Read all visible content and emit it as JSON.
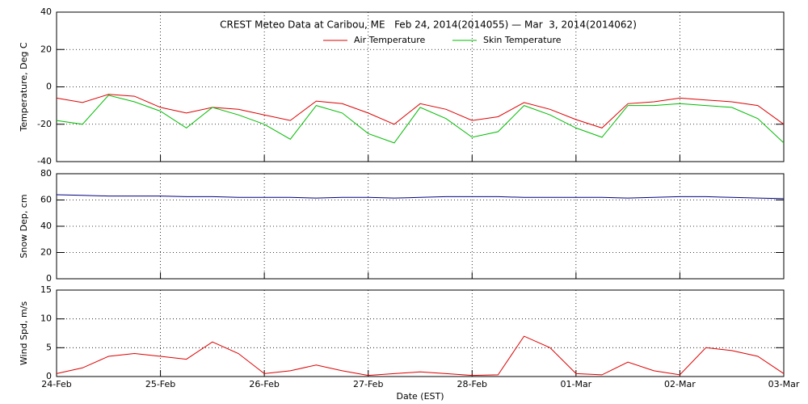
{
  "chart_data": [
    {
      "type": "line",
      "title": "CREST Meteo Data at Caribou, ME   Feb 24, 2014(2014055) — Mar  3, 2014(2014062)",
      "ylabel": "Temperature, Deg C",
      "x": [
        0,
        0.25,
        0.5,
        0.75,
        1,
        1.25,
        1.5,
        1.75,
        2,
        2.25,
        2.5,
        2.75,
        3,
        3.25,
        3.5,
        3.75,
        4,
        4.25,
        4.5,
        4.75,
        5,
        5.25,
        5.5,
        5.75,
        6,
        6.25,
        6.5,
        6.75,
        7
      ],
      "series": [
        {
          "name": "Air Temperature",
          "color": "#dd0000",
          "values": [
            -6,
            -8.4,
            -4,
            -5,
            -11,
            -14,
            -11,
            -12,
            -15,
            -18,
            -7.6,
            -9,
            -14,
            -20,
            -9,
            -12,
            -18,
            -16,
            -8.4,
            -12,
            -17.5,
            -22,
            -9,
            -8,
            -6,
            -7,
            -8,
            -10,
            -20
          ]
        },
        {
          "name": "Skin Temperature",
          "color": "#00bb00",
          "values": [
            -18,
            -20,
            -4.5,
            -8,
            -13,
            -22,
            -11,
            -15,
            -20,
            -28,
            -10,
            -14,
            -25,
            -30,
            -11,
            -17,
            -27,
            -24,
            -10,
            -15,
            -22,
            -27,
            -10,
            -10,
            -9,
            -10,
            -11,
            -17,
            -30
          ]
        }
      ],
      "xlim": [
        0,
        7
      ],
      "xticks": [
        0,
        1,
        2,
        3,
        4,
        5,
        6,
        7
      ],
      "ylim": [
        -40,
        40
      ],
      "yticks": [
        -40,
        -20,
        0,
        20,
        40
      ],
      "grid": true
    },
    {
      "type": "line",
      "ylabel": "Snow Dep, cm",
      "x": [
        0,
        0.25,
        0.5,
        0.75,
        1,
        1.25,
        1.5,
        1.75,
        2,
        2.25,
        2.5,
        2.75,
        3,
        3.25,
        3.5,
        3.75,
        4,
        4.25,
        4.5,
        4.75,
        5,
        5.25,
        5.5,
        5.75,
        6,
        6.25,
        6.5,
        6.75,
        7
      ],
      "series": [
        {
          "color": "#000080",
          "values": [
            64,
            63.5,
            63,
            63,
            63,
            62.5,
            62.5,
            62,
            62,
            62,
            61.5,
            62,
            62,
            61.5,
            62,
            62.5,
            62.5,
            62.5,
            62,
            62,
            62,
            62,
            61.5,
            62,
            62.5,
            62.5,
            62,
            61.5,
            61
          ]
        }
      ],
      "xlim": [
        0,
        7
      ],
      "xticks": [
        0,
        1,
        2,
        3,
        4,
        5,
        6,
        7
      ],
      "ylim": [
        0,
        80
      ],
      "yticks": [
        0,
        20,
        40,
        60,
        80
      ],
      "grid": true
    },
    {
      "type": "line",
      "ylabel": "Wind Spd, m/s",
      "xlabel": "Date (EST)",
      "x": [
        0,
        0.25,
        0.5,
        0.75,
        1,
        1.25,
        1.5,
        1.75,
        2,
        2.25,
        2.5,
        2.75,
        3,
        3.25,
        3.5,
        3.75,
        4,
        4.25,
        4.5,
        4.75,
        5,
        5.25,
        5.5,
        5.75,
        6,
        6.25,
        6.5,
        6.75,
        7
      ],
      "series": [
        {
          "color": "#dd0000",
          "values": [
            0.5,
            1.5,
            3.5,
            4,
            3.5,
            3,
            6,
            4,
            0.5,
            1,
            2,
            1,
            0.2,
            0.5,
            0.8,
            0.5,
            0.2,
            0.3,
            7,
            5,
            0.5,
            0.3,
            2.5,
            1,
            0.3,
            5,
            4.5,
            3.5,
            0.5
          ]
        }
      ],
      "xlim": [
        0,
        7
      ],
      "xticks": [
        {
          "value": 0,
          "label": "24-Feb"
        },
        {
          "value": 1,
          "label": "25-Feb"
        },
        {
          "value": 2,
          "label": "26-Feb"
        },
        {
          "value": 3,
          "label": "27-Feb"
        },
        {
          "value": 4,
          "label": "28-Feb"
        },
        {
          "value": 5,
          "label": "01-Mar"
        },
        {
          "value": 6,
          "label": "02-Mar"
        },
        {
          "value": 7,
          "label": "03-Mar"
        }
      ],
      "ylim": [
        0,
        15
      ],
      "yticks": [
        0,
        5,
        10,
        15
      ],
      "grid": true
    }
  ]
}
